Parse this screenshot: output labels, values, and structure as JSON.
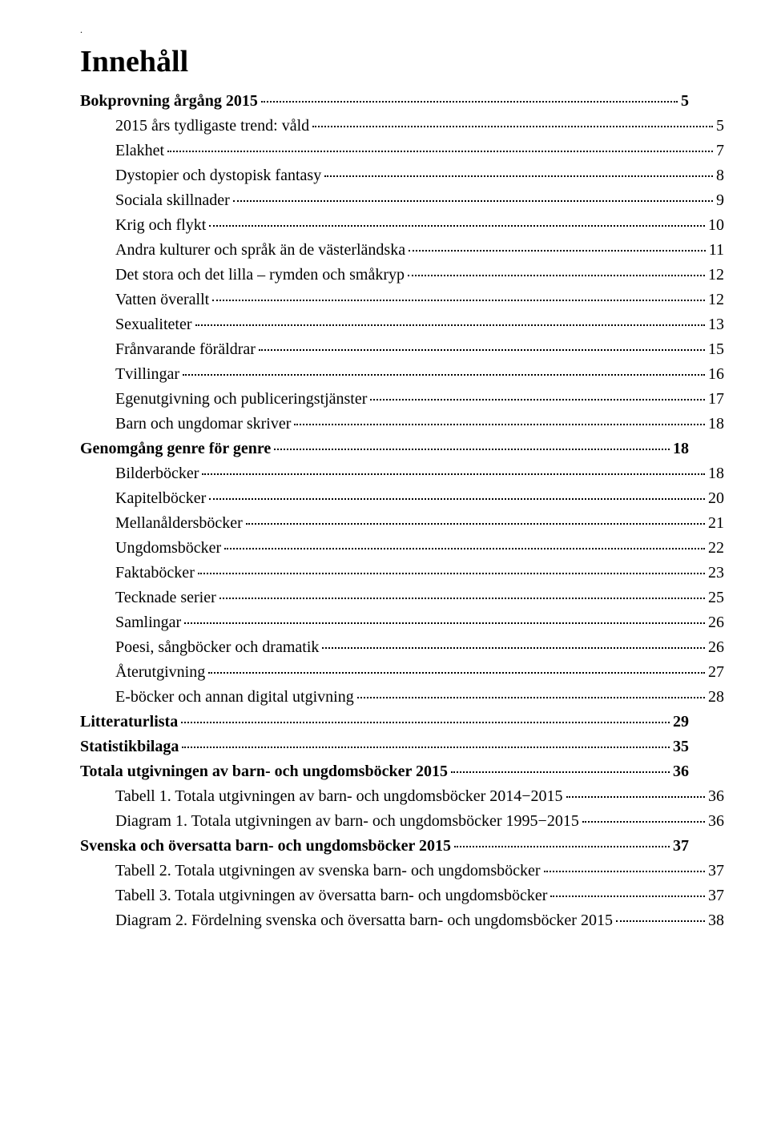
{
  "title": "Innehåll",
  "typography": {
    "title_fontsize_pt": 28,
    "body_fontsize_pt": 15,
    "font_family": "Garamond / serif",
    "text_color": "#000000",
    "background_color": "#ffffff",
    "leader_style": "dotted",
    "leader_color": "#000000"
  },
  "entries": [
    {
      "level": 1,
      "label": "Bokprovning årgång 2015",
      "page": "5"
    },
    {
      "level": 2,
      "label": "2015 års tydligaste trend: våld",
      "page": "5"
    },
    {
      "level": 2,
      "label": "Elakhet",
      "page": "7"
    },
    {
      "level": 2,
      "label": "Dystopier och dystopisk fantasy",
      "page": "8"
    },
    {
      "level": 2,
      "label": "Sociala skillnader",
      "page": "9"
    },
    {
      "level": 2,
      "label": "Krig och flykt",
      "page": "10"
    },
    {
      "level": 2,
      "label": "Andra kulturer och språk än de västerländska",
      "page": "11"
    },
    {
      "level": 2,
      "label": "Det stora och det lilla – rymden och småkryp",
      "page": "12"
    },
    {
      "level": 2,
      "label": "Vatten överallt",
      "page": "12"
    },
    {
      "level": 2,
      "label": "Sexualiteter",
      "page": "13"
    },
    {
      "level": 2,
      "label": "Frånvarande föräldrar",
      "page": "15"
    },
    {
      "level": 2,
      "label": "Tvillingar",
      "page": "16"
    },
    {
      "level": 2,
      "label": "Egenutgivning och publiceringstjänster",
      "page": "17"
    },
    {
      "level": 2,
      "label": "Barn och ungdomar skriver",
      "page": "18"
    },
    {
      "level": 1,
      "label": "Genomgång genre för genre",
      "page": "18"
    },
    {
      "level": 2,
      "label": "Bilderböcker",
      "page": "18"
    },
    {
      "level": 2,
      "label": "Kapitelböcker",
      "page": "20"
    },
    {
      "level": 2,
      "label": "Mellanåldersböcker",
      "page": "21"
    },
    {
      "level": 2,
      "label": "Ungdomsböcker",
      "page": "22"
    },
    {
      "level": 2,
      "label": "Faktaböcker",
      "page": "23"
    },
    {
      "level": 2,
      "label": "Tecknade serier",
      "page": "25"
    },
    {
      "level": 2,
      "label": "Samlingar",
      "page": "26"
    },
    {
      "level": 2,
      "label": "Poesi, sångböcker och dramatik",
      "page": "26"
    },
    {
      "level": 2,
      "label": "Återutgivning",
      "page": "27"
    },
    {
      "level": 2,
      "label": "E-böcker och annan digital utgivning",
      "page": "28"
    },
    {
      "level": 1,
      "label": "Litteraturlista",
      "page": "29"
    },
    {
      "level": 1,
      "label": "Statistikbilaga",
      "page": "35"
    },
    {
      "level": 1,
      "label": "Totala utgivningen av barn- och ungdomsböcker 2015",
      "page": "36"
    },
    {
      "level": 2,
      "label": "Tabell 1. Totala utgivningen av barn- och ungdomsböcker 2014−2015",
      "page": "36"
    },
    {
      "level": 2,
      "label": "Diagram 1. Totala utgivningen av barn- och ungdomsböcker 1995−2015",
      "page": "36"
    },
    {
      "level": 1,
      "label": "Svenska och översatta barn- och ungdomsböcker 2015",
      "page": "37"
    },
    {
      "level": 2,
      "label": "Tabell 2. Totala utgivningen av svenska barn- och ungdomsböcker",
      "page": "37"
    },
    {
      "level": 2,
      "label": "Tabell 3. Totala utgivningen av översatta barn- och ungdomsböcker",
      "page": "37"
    },
    {
      "level": 2,
      "label": "Diagram 2. Fördelning svenska och översatta barn- och ungdomsböcker 2015",
      "page": "38"
    }
  ]
}
